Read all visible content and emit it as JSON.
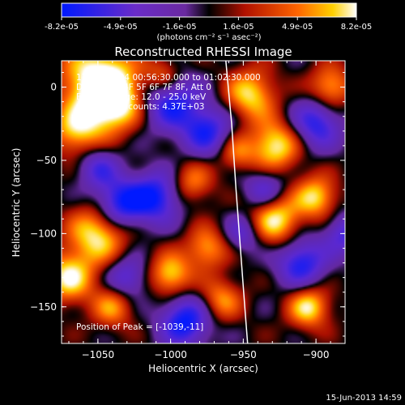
{
  "chart_data": {
    "type": "heatmap",
    "title": "Reconstructed RHESSI Image",
    "xlabel": "Heliocentric X (arcsec)",
    "ylabel": "Heliocentric Y (arcsec)",
    "xlim": [
      -1075,
      -880
    ],
    "ylim": [
      -175,
      18
    ],
    "x_ticks": [
      -1050,
      -1000,
      -950,
      -900
    ],
    "y_ticks": [
      0,
      -50,
      -100,
      -150
    ],
    "colorbar": {
      "ticks": [
        "-8.2e-05",
        "-4.9e-05",
        "-1.6e-05",
        "1.6e-05",
        "4.9e-05",
        "8.2e-05"
      ],
      "min": -8.2e-05,
      "max": 8.2e-05,
      "units": "(photons cm⁻² s⁻¹ asec⁻²)"
    },
    "annotations": [
      "17-Oct-2004 00:56:30.000  to 01:02:30.000",
      "Detectors: 4F 5F 6F 7F 8F, Att 0",
      "Energy Range: 12.0 - 25.0 keV",
      "Clean.  Total counts: 4.37E+03"
    ],
    "peak_label": "Position of Peak = [-1039,-11]",
    "limb": [
      [
        -962,
        18
      ],
      [
        -958,
        -25
      ],
      [
        -955,
        -70
      ],
      [
        -952,
        -110
      ],
      [
        -949,
        -150
      ],
      [
        -947,
        -175
      ]
    ],
    "peaks_pos": [
      {
        "x": -1050,
        "y": 5,
        "v": 0.95,
        "s": 18
      },
      {
        "x": -1040,
        "y": -10,
        "v": 0.9,
        "s": 14
      },
      {
        "x": -1065,
        "y": -30,
        "v": 0.7,
        "s": 12
      },
      {
        "x": -1050,
        "y": -100,
        "v": 0.9,
        "s": 14
      },
      {
        "x": -1070,
        "y": -130,
        "v": 0.85,
        "s": 12
      },
      {
        "x": -1040,
        "y": -150,
        "v": 0.6,
        "s": 10
      },
      {
        "x": -1000,
        "y": -128,
        "v": 0.8,
        "s": 10
      },
      {
        "x": -975,
        "y": -110,
        "v": 0.65,
        "s": 10
      },
      {
        "x": -1005,
        "y": 8,
        "v": 0.55,
        "s": 9
      },
      {
        "x": -985,
        "y": -65,
        "v": 0.55,
        "s": 10
      },
      {
        "x": -945,
        "y": -5,
        "v": 0.8,
        "s": 12
      },
      {
        "x": -928,
        "y": -40,
        "v": 0.9,
        "s": 12
      },
      {
        "x": -900,
        "y": -75,
        "v": 0.8,
        "s": 10
      },
      {
        "x": -928,
        "y": -90,
        "v": 0.9,
        "s": 12
      },
      {
        "x": -905,
        "y": -150,
        "v": 0.85,
        "s": 10
      },
      {
        "x": -965,
        "y": -145,
        "v": 0.6,
        "s": 10
      },
      {
        "x": -890,
        "y": 0,
        "v": 0.7,
        "s": 10
      },
      {
        "x": -955,
        "y": -45,
        "v": 0.5,
        "s": 9
      }
    ],
    "peaks_neg": [
      {
        "x": -1000,
        "y": -10,
        "v": 0.8,
        "s": 14
      },
      {
        "x": -1035,
        "y": -80,
        "v": 0.9,
        "s": 12
      },
      {
        "x": -1010,
        "y": -75,
        "v": 0.85,
        "s": 12
      },
      {
        "x": -975,
        "y": -30,
        "v": 0.75,
        "s": 12
      },
      {
        "x": -990,
        "y": -160,
        "v": 0.9,
        "s": 12
      },
      {
        "x": -1030,
        "y": -130,
        "v": 0.6,
        "s": 10
      },
      {
        "x": -900,
        "y": -25,
        "v": 0.75,
        "s": 12
      },
      {
        "x": -935,
        "y": -70,
        "v": 0.6,
        "s": 10
      },
      {
        "x": -910,
        "y": -120,
        "v": 0.8,
        "s": 12
      },
      {
        "x": -950,
        "y": -100,
        "v": 0.5,
        "s": 9
      },
      {
        "x": -1050,
        "y": -55,
        "v": 0.55,
        "s": 10
      },
      {
        "x": -880,
        "y": -100,
        "v": 0.6,
        "s": 10
      }
    ]
  },
  "footer": {
    "timestamp": "15-Jun-2013 14:59"
  }
}
